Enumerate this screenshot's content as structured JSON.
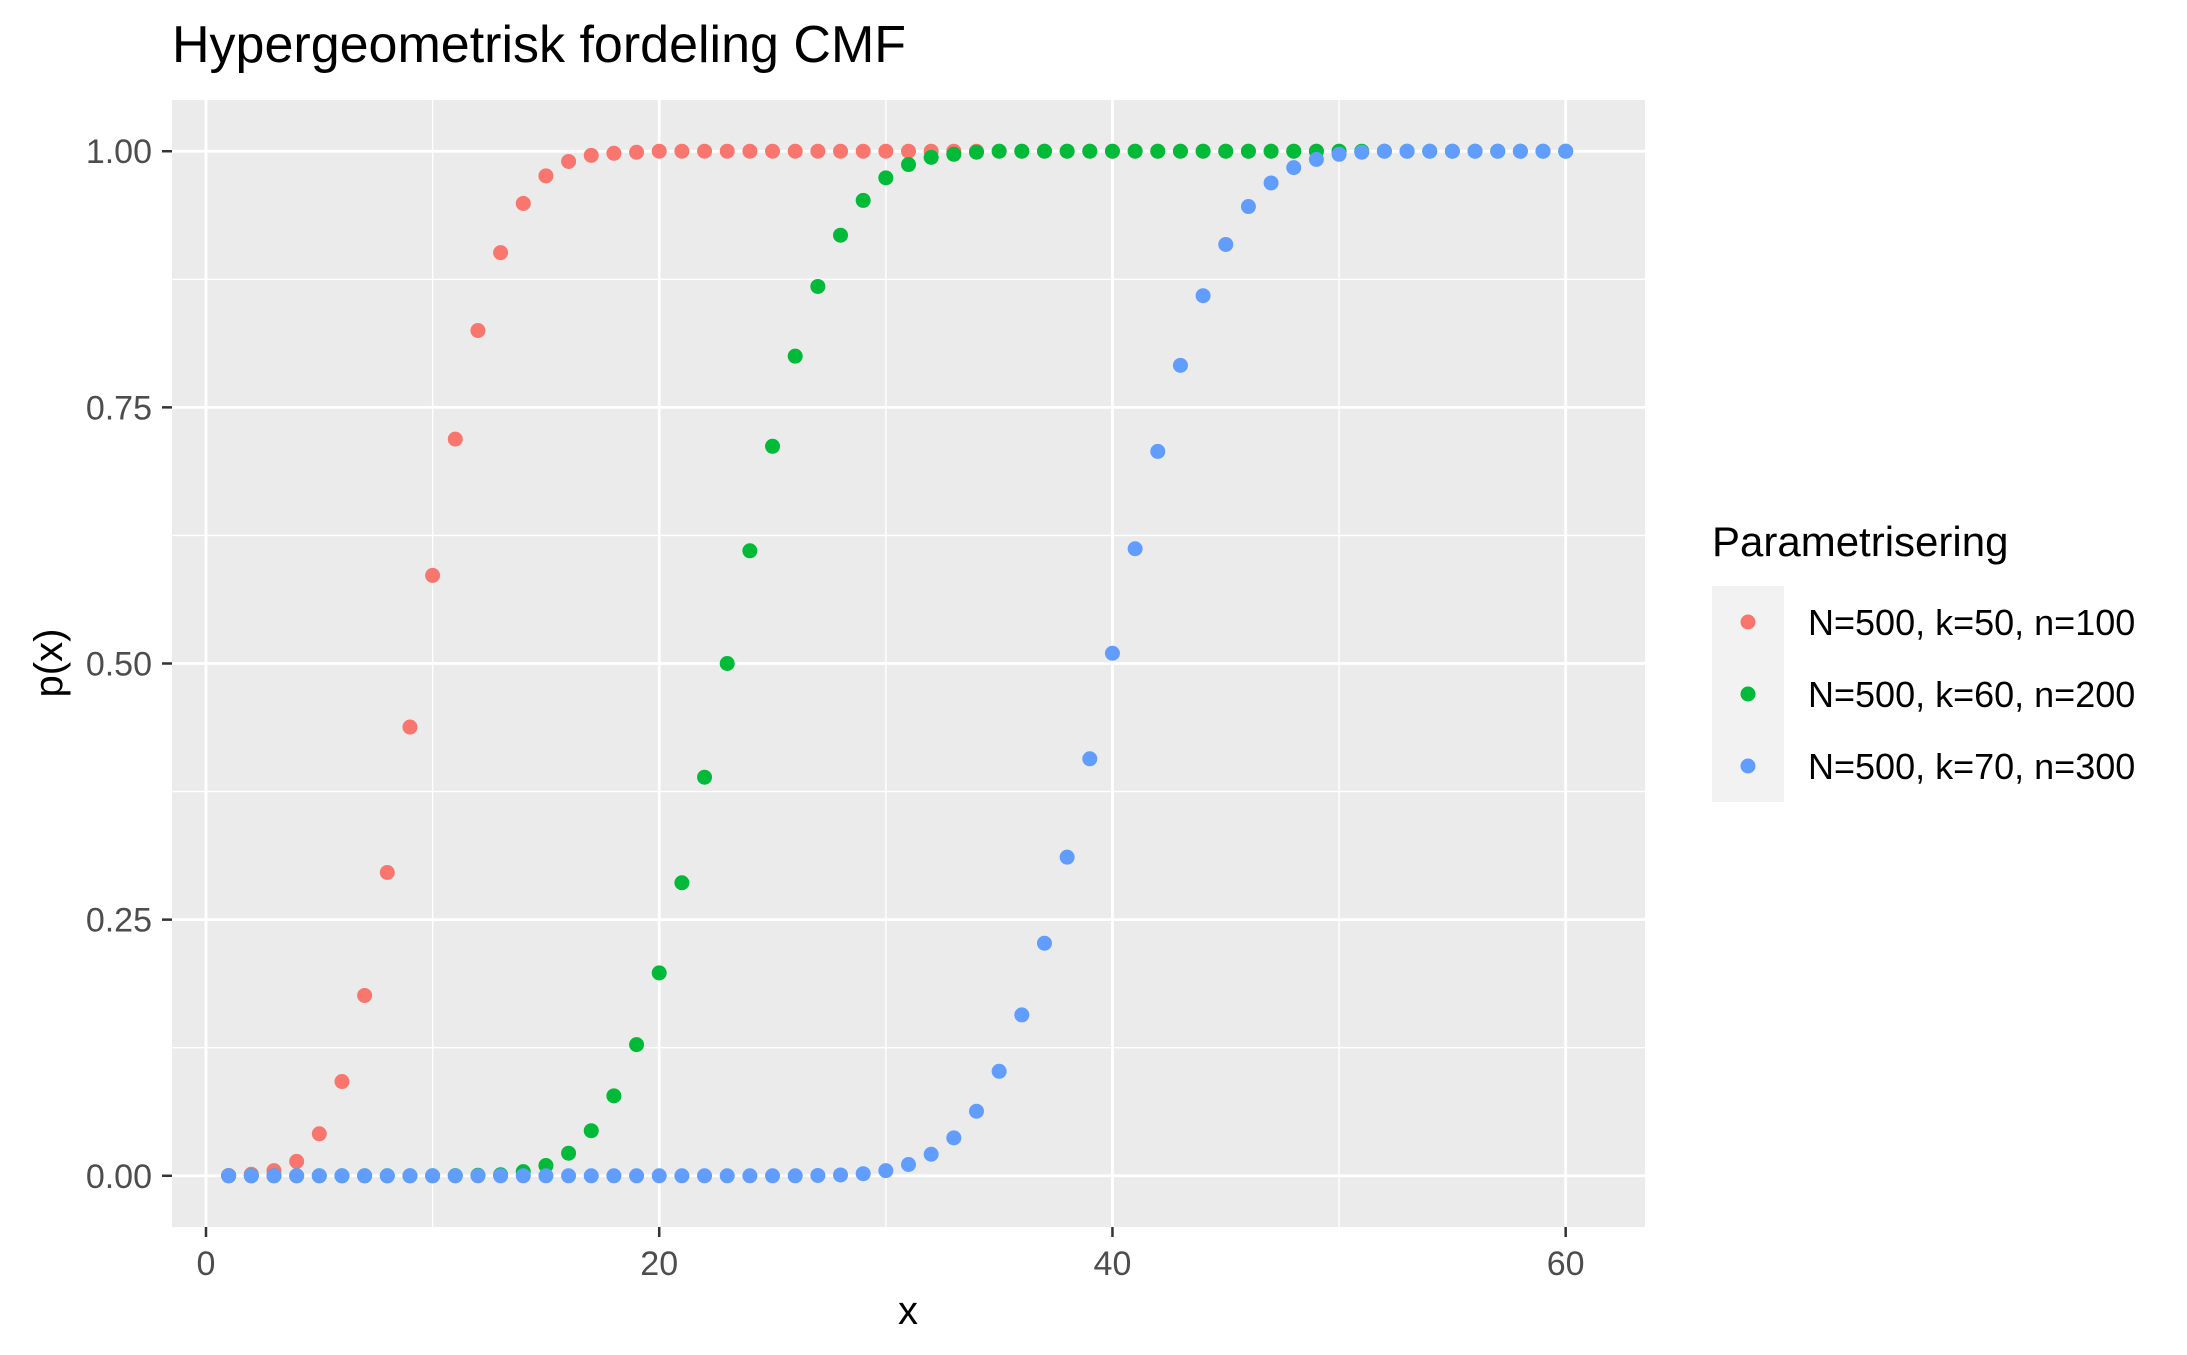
{
  "chart_data": {
    "type": "scatter",
    "title": "Hypergeometrisk fordeling CMF",
    "xlabel": "x",
    "ylabel": "p(x)",
    "xlim": [
      -1.5,
      63.5
    ],
    "ylim": [
      -0.05,
      1.05
    ],
    "x_ticks": [
      0,
      20,
      40,
      60
    ],
    "x_tick_labels": [
      "0",
      "20",
      "40",
      "60"
    ],
    "y_ticks": [
      0,
      0.25,
      0.5,
      0.75,
      1.0
    ],
    "y_tick_labels": [
      "0.00",
      "0.25",
      "0.50",
      "0.75",
      "1.00"
    ],
    "grid": true,
    "legend": {
      "title": "Parametrisering",
      "position": "right"
    },
    "colors": {
      "panel_background": "#EBEBEB",
      "grid_major": "#FFFFFF",
      "axis_text": "#4D4D4D"
    },
    "series": [
      {
        "name": "N=500, k=50, n=100",
        "color": "#F8766D",
        "x": [
          1,
          2,
          3,
          4,
          5,
          6,
          7,
          8,
          9,
          10,
          11,
          12,
          13,
          14,
          15,
          16,
          17,
          18,
          19,
          20,
          21,
          22,
          23,
          24,
          25,
          26,
          27,
          28,
          29,
          30,
          31,
          32,
          33,
          34,
          35,
          36,
          37,
          38,
          39,
          40,
          41,
          42,
          43,
          44,
          45,
          46,
          47,
          48,
          49,
          50
        ],
        "y": [
          0.0003,
          0.0015,
          0.005,
          0.014,
          0.041,
          0.092,
          0.176,
          0.296,
          0.438,
          0.586,
          0.719,
          0.825,
          0.901,
          0.949,
          0.976,
          0.99,
          0.996,
          0.998,
          0.999,
          1.0,
          1.0,
          1.0,
          1.0,
          1.0,
          1.0,
          1.0,
          1.0,
          1.0,
          1.0,
          1.0,
          1.0,
          1.0,
          1.0,
          1.0,
          1.0,
          1.0,
          1.0,
          1.0,
          1.0,
          1.0,
          1.0,
          1.0,
          1.0,
          1.0,
          1.0,
          1.0,
          1.0,
          1.0,
          1.0,
          1.0
        ]
      },
      {
        "name": "N=500, k=60, n=200",
        "color": "#00BA38",
        "x": [
          1,
          2,
          3,
          4,
          5,
          6,
          7,
          8,
          9,
          10,
          11,
          12,
          13,
          14,
          15,
          16,
          17,
          18,
          19,
          20,
          21,
          22,
          23,
          24,
          25,
          26,
          27,
          28,
          29,
          30,
          31,
          32,
          33,
          34,
          35,
          36,
          37,
          38,
          39,
          40,
          41,
          42,
          43,
          44,
          45,
          46,
          47,
          48,
          49,
          50,
          51,
          52,
          53,
          54,
          55,
          56,
          57,
          58,
          59,
          60
        ],
        "y": [
          0,
          0,
          0,
          0,
          0,
          0,
          0,
          0,
          0,
          0,
          0.0001,
          0.0005,
          0.001,
          0.004,
          0.01,
          0.022,
          0.044,
          0.078,
          0.128,
          0.198,
          0.286,
          0.389,
          0.5,
          0.61,
          0.712,
          0.8,
          0.868,
          0.918,
          0.952,
          0.974,
          0.987,
          0.994,
          0.997,
          0.999,
          1.0,
          1.0,
          1.0,
          1.0,
          1.0,
          1.0,
          1.0,
          1.0,
          1.0,
          1.0,
          1.0,
          1.0,
          1.0,
          1.0,
          1.0,
          1.0,
          1.0,
          1.0,
          1.0,
          1.0,
          1.0,
          1.0,
          1.0,
          1.0,
          1.0,
          1.0
        ]
      },
      {
        "name": "N=500, k=70, n=300",
        "color": "#619CFF",
        "x": [
          1,
          2,
          3,
          4,
          5,
          6,
          7,
          8,
          9,
          10,
          11,
          12,
          13,
          14,
          15,
          16,
          17,
          18,
          19,
          20,
          21,
          22,
          23,
          24,
          25,
          26,
          27,
          28,
          29,
          30,
          31,
          32,
          33,
          34,
          35,
          36,
          37,
          38,
          39,
          40,
          41,
          42,
          43,
          44,
          45,
          46,
          47,
          48,
          49,
          50,
          51,
          52,
          53,
          54,
          55,
          56,
          57,
          58,
          59,
          60
        ],
        "y": [
          0,
          0,
          0,
          0,
          0,
          0,
          0,
          0,
          0,
          0,
          0,
          0,
          0,
          0,
          0,
          0,
          0,
          0,
          0,
          0,
          0,
          0,
          0,
          0,
          0,
          0,
          0.0003,
          0.0008,
          0.002,
          0.005,
          0.011,
          0.021,
          0.037,
          0.063,
          0.102,
          0.157,
          0.227,
          0.311,
          0.407,
          0.51,
          0.612,
          0.707,
          0.791,
          0.859,
          0.909,
          0.946,
          0.969,
          0.984,
          0.992,
          0.997,
          0.999,
          1.0,
          1.0,
          1.0,
          1.0,
          1.0,
          1.0,
          1.0,
          1.0,
          1.0
        ]
      }
    ]
  }
}
